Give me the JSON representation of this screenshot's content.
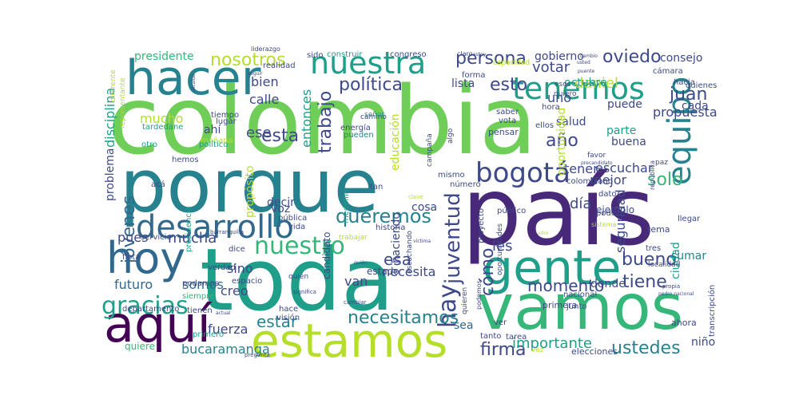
{
  "palette": {
    "dark_purple": "#440154",
    "purple": "#482878",
    "indigo": "#3e4989",
    "blue": "#31688e",
    "teal_blue": "#26828e",
    "teal": "#1f9e89",
    "green": "#35b779",
    "light_green": "#6ece58",
    "lime": "#b5de2b",
    "yellow": "#e5e419"
  },
  "words": [
    {
      "text": "colombia",
      "color": "light_green"
    },
    {
      "text": "país",
      "color": "purple"
    },
    {
      "text": "toda",
      "color": "teal"
    },
    {
      "text": "porque",
      "color": "teal_blue"
    },
    {
      "text": "vamos",
      "color": "green"
    },
    {
      "text": "hacer",
      "color": "teal_blue"
    },
    {
      "text": "estamos",
      "color": "lime"
    },
    {
      "text": "aquí",
      "color": "dark_purple"
    },
    {
      "text": "gente",
      "color": "teal"
    },
    {
      "text": "hoy",
      "color": "blue"
    },
    {
      "text": "desarrollo",
      "color": "blue"
    },
    {
      "text": "nuestra",
      "color": "teal"
    },
    {
      "text": "tenemos",
      "color": "teal"
    },
    {
      "text": "equipo",
      "color": "teal_blue"
    },
    {
      "text": "bogotá",
      "color": "indigo"
    },
    {
      "text": "nuestro",
      "color": "green"
    },
    {
      "text": "gracias",
      "color": "teal"
    },
    {
      "text": "hay",
      "color": "indigo"
    },
    {
      "text": "juventud",
      "color": "indigo"
    },
    {
      "text": "queremos",
      "color": "teal_blue"
    },
    {
      "text": "política",
      "color": "indigo"
    },
    {
      "text": "nosotros",
      "color": "lime"
    },
    {
      "text": "persona",
      "color": "indigo"
    },
    {
      "text": "trabajo",
      "color": "indigo"
    },
    {
      "text": "esto",
      "color": "indigo"
    },
    {
      "text": "oviedo",
      "color": "indigo"
    },
    {
      "text": "necesitamos",
      "color": "teal_blue"
    },
    {
      "text": "ustedes",
      "color": "teal_blue"
    },
    {
      "text": "firma",
      "color": "indigo"
    },
    {
      "text": "tiene",
      "color": "indigo"
    },
    {
      "text": "bueno",
      "color": "indigo"
    },
    {
      "text": "esta",
      "color": "indigo"
    },
    {
      "text": "año",
      "color": "indigo"
    },
    {
      "text": "solo",
      "color": "green"
    },
    {
      "text": "momento",
      "color": "indigo"
    },
    {
      "text": "estar",
      "color": "teal_blue"
    },
    {
      "text": "esa",
      "color": "indigo"
    },
    {
      "text": "cómo",
      "color": "indigo"
    },
    {
      "text": "juan",
      "color": "indigo"
    },
    {
      "text": "jóvenes",
      "color": "blue"
    },
    {
      "text": "mucha",
      "color": "indigo"
    },
    {
      "text": "importante",
      "color": "teal"
    },
    {
      "text": "día",
      "color": "indigo"
    },
    {
      "text": "votar",
      "color": "indigo"
    },
    {
      "text": "daniel",
      "color": "lime"
    },
    {
      "text": "ese",
      "color": "indigo"
    },
    {
      "text": "pues",
      "color": "indigo"
    },
    {
      "text": "futuro",
      "color": "blue"
    },
    {
      "text": "presidente",
      "color": "green"
    },
    {
      "text": "gobierno",
      "color": "indigo"
    },
    {
      "text": "consejo",
      "color": "indigo"
    },
    {
      "text": "lista",
      "color": "indigo"
    },
    {
      "text": "decir",
      "color": "indigo"
    },
    {
      "text": "necesita",
      "color": "indigo"
    },
    {
      "text": "sino",
      "color": "indigo"
    },
    {
      "text": "creo",
      "color": "indigo"
    },
    {
      "text": "somos",
      "color": "blue"
    },
    {
      "text": "van",
      "color": "indigo"
    },
    {
      "text": "tener",
      "color": "indigo"
    },
    {
      "text": "mejor",
      "color": "indigo"
    },
    {
      "text": "escuchar",
      "color": "indigo"
    },
    {
      "text": "propuesta",
      "color": "indigo"
    },
    {
      "text": "salud",
      "color": "indigo"
    },
    {
      "text": "buena",
      "color": "indigo"
    },
    {
      "text": "parte",
      "color": "teal"
    },
    {
      "text": "puede",
      "color": "indigo"
    },
    {
      "text": "cada",
      "color": "indigo"
    },
    {
      "text": "bien",
      "color": "indigo"
    },
    {
      "text": "calle",
      "color": "indigo"
    },
    {
      "text": "mucho",
      "color": "lime"
    },
    {
      "text": "ahí",
      "color": "indigo"
    },
    {
      "text": "uno",
      "color": "indigo"
    },
    {
      "text": "octubre",
      "color": "teal"
    },
    {
      "text": "entonces",
      "color": "teal"
    },
    {
      "text": "disciplina",
      "color": "teal"
    },
    {
      "text": "fuerza",
      "color": "indigo"
    },
    {
      "text": "bucaramanga",
      "color": "teal_blue"
    },
    {
      "text": "quiere",
      "color": "green"
    },
    {
      "text": "seguridad",
      "color": "indigo"
    },
    {
      "text": "ciudad",
      "color": "teal"
    },
    {
      "text": "sumar",
      "color": "teal_blue"
    },
    {
      "text": "donde",
      "color": "indigo"
    },
    {
      "text": "niño",
      "color": "indigo"
    },
    {
      "text": "les",
      "color": "indigo"
    },
    {
      "text": "sea",
      "color": "blue"
    },
    {
      "text": "haciendo",
      "color": "indigo"
    },
    {
      "text": "educación",
      "color": "lime"
    },
    {
      "text": "oportunidad",
      "color": "lime"
    },
    {
      "text": "cosa",
      "color": "indigo"
    },
    {
      "text": "voz",
      "color": "indigo"
    },
    {
      "text": "problema",
      "color": "indigo"
    },
    {
      "text": "propósito",
      "color": "lime"
    },
    {
      "text": "candidato",
      "color": "indigo"
    },
    {
      "text": "estado",
      "color": "indigo"
    },
    {
      "text": "ejemplo",
      "color": "indigo"
    },
    {
      "text": "tema",
      "color": "indigo"
    },
    {
      "text": "ahora",
      "color": "indigo"
    },
    {
      "text": "primera",
      "color": "indigo"
    },
    {
      "text": "elecciones",
      "color": "indigo"
    },
    {
      "text": "transcripción",
      "color": "indigo"
    },
    {
      "text": "llegar",
      "color": "indigo"
    },
    {
      "text": "nacional",
      "color": "indigo"
    },
    {
      "text": "junto",
      "color": "indigo"
    },
    {
      "text": "localidad",
      "color": "indigo"
    },
    {
      "text": "tres",
      "color": "indigo"
    },
    {
      "text": "construir",
      "color": "teal"
    },
    {
      "text": "sido",
      "color": "indigo"
    },
    {
      "text": "congreso",
      "color": "indigo"
    },
    {
      "text": "realidad",
      "color": "indigo"
    },
    {
      "text": "cámara",
      "color": "indigo"
    },
    {
      "text": "hacia",
      "color": "indigo"
    },
    {
      "text": "quienes",
      "color": "indigo"
    },
    {
      "text": "tiempo",
      "color": "indigo"
    },
    {
      "text": "lugar",
      "color": "indigo"
    },
    {
      "text": "energía",
      "color": "indigo"
    },
    {
      "text": "pueden",
      "color": "teal_blue"
    },
    {
      "text": "pensar",
      "color": "indigo"
    },
    {
      "text": "saber",
      "color": "indigo"
    },
    {
      "text": "vota",
      "color": "indigo"
    },
    {
      "text": "hora",
      "color": "indigo"
    },
    {
      "text": "ellos",
      "color": "indigo"
    },
    {
      "text": "forma",
      "color": "indigo"
    },
    {
      "text": "mañana",
      "color": "lime"
    },
    {
      "text": "político",
      "color": "teal"
    },
    {
      "text": "tardedane",
      "color": "teal"
    },
    {
      "text": "otro",
      "color": "teal"
    },
    {
      "text": "hemos",
      "color": "indigo"
    },
    {
      "text": "acá",
      "color": "indigo"
    },
    {
      "text": "vida",
      "color": "indigo"
    },
    {
      "text": "pública",
      "color": "indigo"
    },
    {
      "text": "presidencia",
      "color": "teal"
    },
    {
      "text": "servicio",
      "color": "indigo"
    },
    {
      "text": "historia",
      "color": "indigo"
    },
    {
      "text": "medellín",
      "color": "teal"
    },
    {
      "text": "tan",
      "color": "indigo"
    },
    {
      "text": "número",
      "color": "indigo"
    },
    {
      "text": "mismo",
      "color": "indigo"
    },
    {
      "text": "colombiano",
      "color": "indigo"
    },
    {
      "text": "dato",
      "color": "indigo"
    },
    {
      "text": "público",
      "color": "indigo"
    },
    {
      "text": "proyecto",
      "color": "indigo"
    },
    {
      "text": "poder",
      "color": "indigo"
    },
    {
      "text": "flota",
      "color": "indigo"
    },
    {
      "text": "verdad",
      "color": "indigo"
    },
    {
      "text": "dice",
      "color": "indigo"
    },
    {
      "text": "podamos",
      "color": "indigo"
    },
    {
      "text": "siempre",
      "color": "green"
    },
    {
      "text": "espacio",
      "color": "indigo"
    },
    {
      "text": "departamento",
      "color": "indigo"
    },
    {
      "text": "tienen",
      "color": "indigo"
    },
    {
      "text": "primero",
      "color": "teal"
    },
    {
      "text": "hace",
      "color": "indigo"
    },
    {
      "text": "visión",
      "color": "indigo"
    },
    {
      "text": "tarea",
      "color": "indigo"
    },
    {
      "text": "ver",
      "color": "indigo"
    },
    {
      "text": "tanto",
      "color": "indigo"
    },
    {
      "text": "vez",
      "color": "lime"
    },
    {
      "text": "quieren",
      "color": "indigo"
    },
    {
      "text": "oportunidades",
      "color": "indigo"
    },
    {
      "text": "escuchando",
      "color": "indigo"
    },
    {
      "text": "campaña",
      "color": "indigo"
    },
    {
      "text": "algo",
      "color": "indigo"
    },
    {
      "text": "quiero",
      "color": "indigo"
    },
    {
      "text": "esos",
      "color": "indigo"
    },
    {
      "text": "capacidad",
      "color": "lime"
    },
    {
      "text": "camino",
      "color": "indigo"
    },
    {
      "text": "señor",
      "color": "teal"
    },
    {
      "text": "favor",
      "color": "indigo"
    },
    {
      "text": "paz",
      "color": "indigo"
    },
    {
      "text": "república",
      "color": "indigo"
    },
    {
      "text": "diferente",
      "color": "lime"
    },
    {
      "text": "representante",
      "color": "lime"
    },
    {
      "text": "liderazgo",
      "color": "indigo"
    },
    {
      "text": "quién",
      "color": "indigo"
    },
    {
      "text": "significa",
      "color": "indigo"
    },
    {
      "text": "cambiar",
      "color": "indigo"
    },
    {
      "text": "trabajar",
      "color": "lime"
    },
    {
      "text": "barranquilla",
      "color": "indigo"
    },
    {
      "text": "claro",
      "color": "indigo"
    },
    {
      "text": "sistema",
      "color": "lime"
    },
    {
      "text": "podemos",
      "color": "indigo"
    },
    {
      "text": "pregunta",
      "color": "indigo"
    },
    {
      "text": "seguir",
      "color": "indigo"
    },
    {
      "text": "alcalde",
      "color": "indigo"
    },
    {
      "text": "actual",
      "color": "indigo"
    },
    {
      "text": "víctima",
      "color": "indigo"
    },
    {
      "text": "precandidato",
      "color": "indigo"
    },
    {
      "text": "estoy",
      "color": "indigo"
    },
    {
      "text": "puente",
      "color": "indigo"
    },
    {
      "text": "usted",
      "color": "indigo"
    },
    {
      "text": "clave",
      "color": "lime"
    },
    {
      "text": "cambio",
      "color": "indigo"
    },
    {
      "text": "quién",
      "color": "indigo"
    },
    {
      "text": "pedro nacional",
      "color": "indigo"
    },
    {
      "text": "propia",
      "color": "indigo"
    },
    {
      "text": "adm",
      "color": "lime"
    }
  ]
}
